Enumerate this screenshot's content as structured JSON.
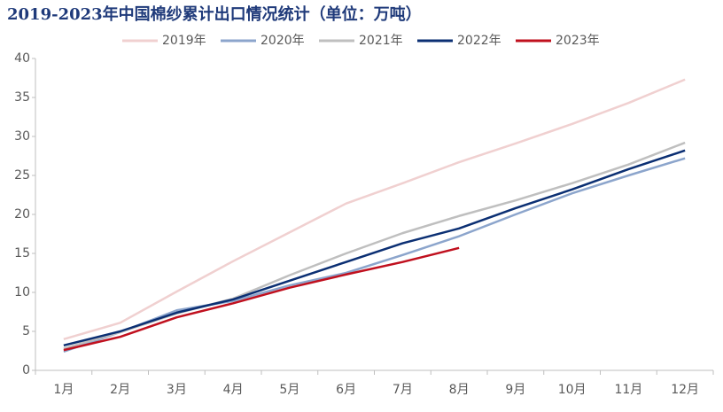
{
  "chart_data": {
    "type": "line",
    "title": "2019-2023年中国棉纱累计出口情况统计（单位：万吨）",
    "categories": [
      "1月",
      "2月",
      "3月",
      "4月",
      "5月",
      "6月",
      "7月",
      "8月",
      "9月",
      "10月",
      "11月",
      "12月"
    ],
    "series": [
      {
        "name": "2019年",
        "color": "#f0d0d0",
        "values": [
          4.0,
          6.1,
          10.1,
          14.0,
          17.7,
          21.4,
          24.0,
          26.7,
          29.1,
          31.6,
          34.3,
          37.3
        ]
      },
      {
        "name": "2020年",
        "color": "#8ca5cc",
        "values": [
          2.4,
          4.9,
          7.7,
          8.9,
          10.9,
          12.5,
          14.8,
          17.2,
          20.0,
          22.7,
          25.0,
          27.2
        ]
      },
      {
        "name": "2021年",
        "color": "#bfbfbf",
        "values": [
          2.8,
          4.9,
          7.3,
          9.2,
          12.2,
          15.0,
          17.6,
          19.8,
          21.8,
          24.0,
          26.4,
          29.2
        ]
      },
      {
        "name": "2022年",
        "color": "#0b2f73",
        "values": [
          3.2,
          5.0,
          7.4,
          9.1,
          11.5,
          13.9,
          16.3,
          18.2,
          20.8,
          23.2,
          25.8,
          28.2
        ]
      },
      {
        "name": "2023年",
        "color": "#c0101e",
        "values": [
          2.6,
          4.3,
          6.8,
          8.6,
          10.6,
          12.3,
          13.9,
          15.7,
          null,
          null,
          null,
          null
        ]
      }
    ],
    "ylim": [
      0,
      40
    ],
    "yticks": [
      0,
      5,
      10,
      15,
      20,
      25,
      30,
      35,
      40
    ],
    "grid": false,
    "legend": "top"
  }
}
